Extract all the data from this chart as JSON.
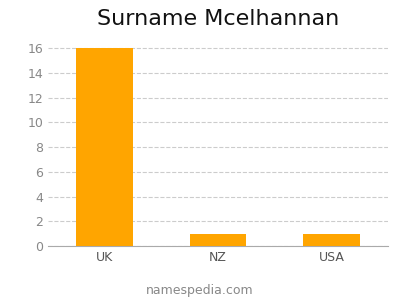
{
  "title": "Surname Mcelhannan",
  "categories": [
    "UK",
    "NZ",
    "USA"
  ],
  "values": [
    16,
    1,
    1
  ],
  "bar_color": "#FFA500",
  "ylim": [
    0,
    17
  ],
  "yticks": [
    0,
    2,
    4,
    6,
    8,
    10,
    12,
    14,
    16
  ],
  "grid_color": "#cccccc",
  "background_color": "#ffffff",
  "title_fontsize": 16,
  "tick_fontsize": 9,
  "footer_text": "namespedia.com",
  "footer_fontsize": 9,
  "footer_color": "#888888",
  "bar_width": 0.5,
  "spine_color": "#aaaaaa"
}
